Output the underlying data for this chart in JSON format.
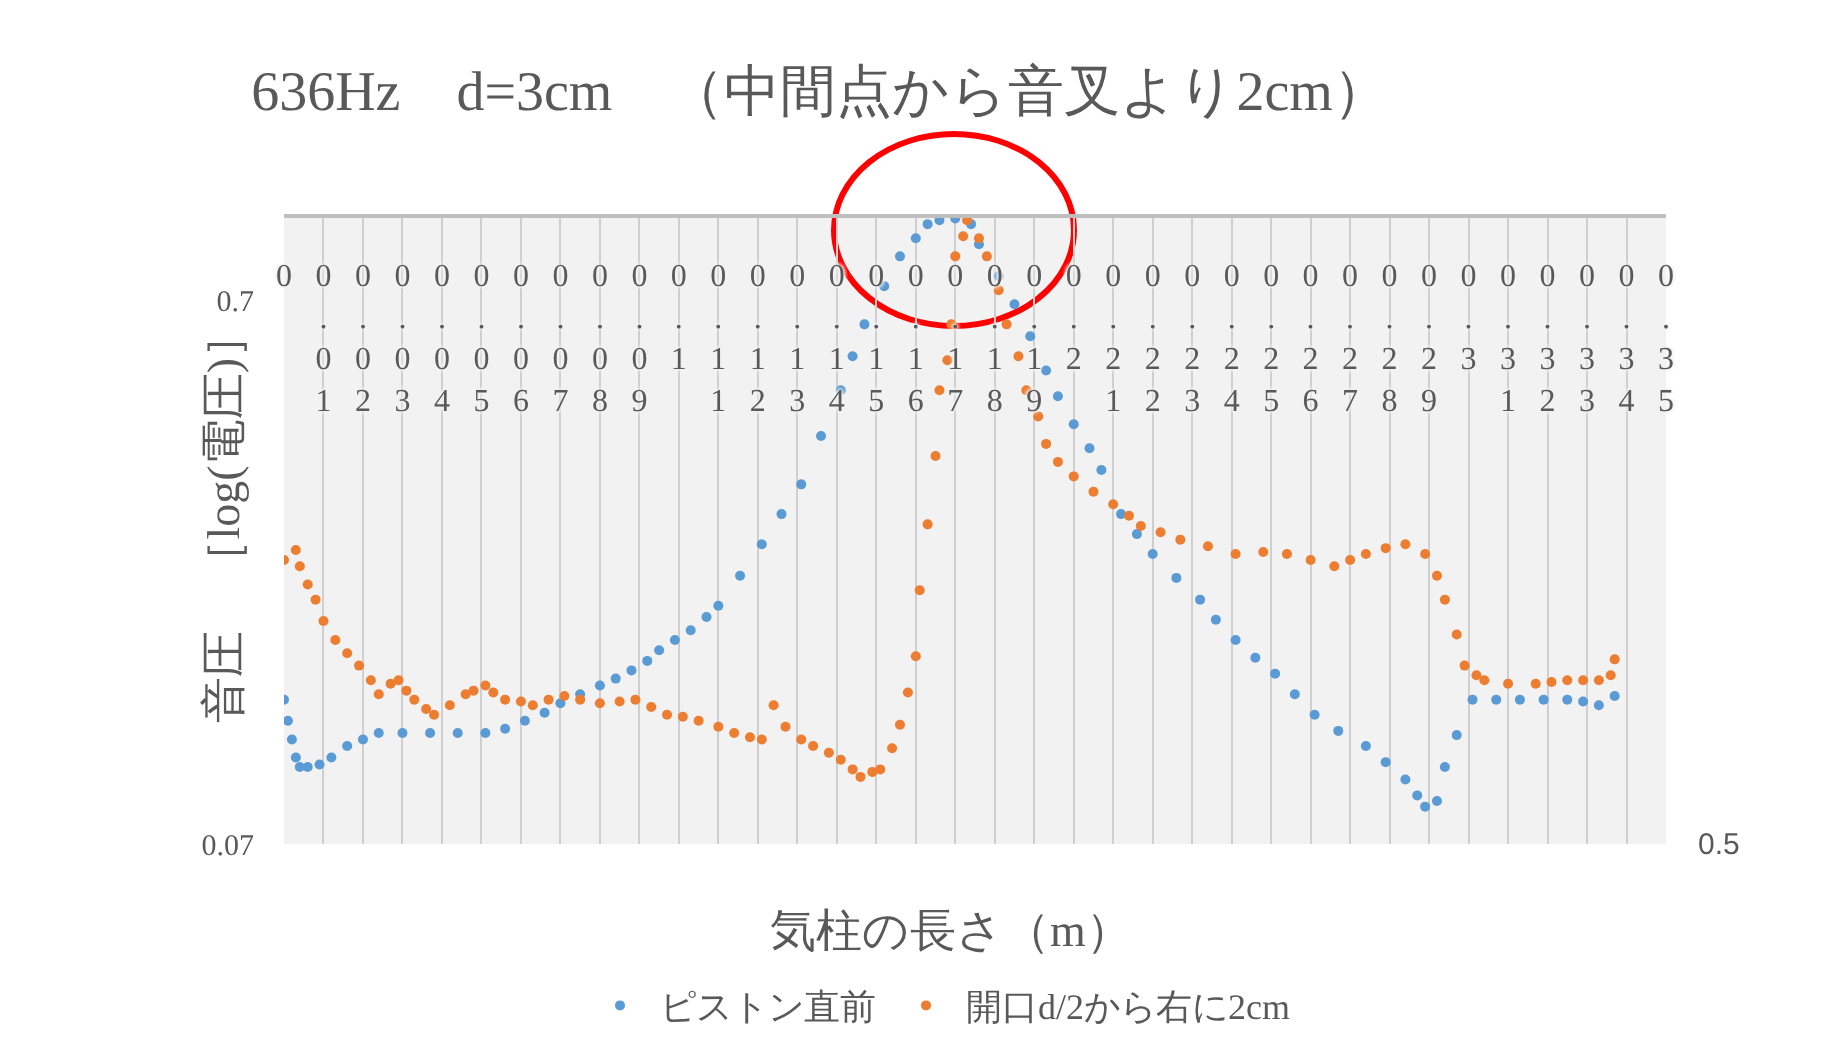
{
  "chart_data": {
    "type": "scatter",
    "title": "636Hz　d=3cm　（中間点から音叉より2cm）",
    "xlabel": "気柱の長さ（m）",
    "ylabel": "音圧　［log(電圧)］",
    "annotations": [
      "0.5"
    ],
    "xlim": [
      0,
      0.35
    ],
    "xticks": [
      0,
      0.01,
      0.02,
      0.03,
      0.04,
      0.05,
      0.06,
      0.07,
      0.08,
      0.09,
      0.1,
      0.11,
      0.12,
      0.13,
      0.14,
      0.15,
      0.16,
      0.17,
      0.18,
      0.19,
      0.2,
      0.21,
      0.22,
      0.23,
      0.24,
      0.25,
      0.26,
      0.27,
      0.28,
      0.29,
      0.3,
      0.31,
      0.32,
      0.33,
      0.34,
      0.35
    ],
    "ylim": [
      0.07,
      1
    ],
    "yticks": [
      0.07,
      0.7
    ],
    "log": "y",
    "grid": "x",
    "legend": "bottom",
    "marker": "circle",
    "series": [
      {
        "name": "ピストン直前",
        "color": "#5b9bd5",
        "x": [
          0,
          0.001,
          0.002,
          0.003,
          0.004,
          0.006,
          0.009,
          0.012,
          0.016,
          0.02,
          0.024,
          0.03,
          0.037,
          0.044,
          0.051,
          0.056,
          0.061,
          0.066,
          0.07,
          0.075,
          0.08,
          0.084,
          0.088,
          0.092,
          0.095,
          0.099,
          0.103,
          0.107,
          0.11,
          0.1155,
          0.121,
          0.126,
          0.131,
          0.136,
          0.141,
          0.144,
          0.147,
          0.152,
          0.156,
          0.16,
          0.163,
          0.166,
          0.17,
          0.174,
          0.176,
          0.181,
          0.185,
          0.189,
          0.193,
          0.196,
          0.2,
          0.204,
          0.207,
          0.212,
          0.216,
          0.22,
          0.226,
          0.232,
          0.236,
          0.241,
          0.246,
          0.251,
          0.256,
          0.261,
          0.267,
          0.274,
          0.279,
          0.284,
          0.287,
          0.289,
          0.292,
          0.294,
          0.297,
          0.301,
          0.307,
          0.313,
          0.319,
          0.325,
          0.329,
          0.333,
          0.337
        ],
        "values": [
          0.129,
          0.118,
          0.109,
          0.101,
          0.097,
          0.097,
          0.098,
          0.101,
          0.106,
          0.109,
          0.112,
          0.112,
          0.112,
          0.112,
          0.112,
          0.114,
          0.118,
          0.122,
          0.127,
          0.132,
          0.137,
          0.141,
          0.146,
          0.152,
          0.159,
          0.166,
          0.173,
          0.183,
          0.192,
          0.218,
          0.249,
          0.283,
          0.321,
          0.394,
          0.478,
          0.552,
          0.632,
          0.743,
          0.843,
          0.91,
          0.966,
          0.982,
          0.99,
          0.966,
          0.887,
          0.775,
          0.688,
          0.601,
          0.52,
          0.466,
          0.414,
          0.374,
          0.341,
          0.283,
          0.26,
          0.239,
          0.216,
          0.197,
          0.181,
          0.166,
          0.154,
          0.144,
          0.132,
          0.121,
          0.113,
          0.106,
          0.099,
          0.092,
          0.086,
          0.082,
          0.084,
          0.097,
          0.111,
          0.129,
          0.129,
          0.129,
          0.129,
          0.129,
          0.128,
          0.126,
          0.131
        ]
      },
      {
        "name": "開口d/2から右に2cm",
        "color": "#ed7d31",
        "x": [
          0,
          0.003,
          0.004,
          0.006,
          0.008,
          0.01,
          0.013,
          0.016,
          0.019,
          0.022,
          0.024,
          0.027,
          0.029,
          0.031,
          0.033,
          0.036,
          0.038,
          0.042,
          0.046,
          0.048,
          0.051,
          0.053,
          0.056,
          0.06,
          0.063,
          0.067,
          0.071,
          0.075,
          0.08,
          0.085,
          0.089,
          0.093,
          0.097,
          0.101,
          0.105,
          0.11,
          0.114,
          0.118,
          0.121,
          0.124,
          0.127,
          0.131,
          0.134,
          0.138,
          0.141,
          0.144,
          0.146,
          0.149,
          0.151,
          0.154,
          0.156,
          0.158,
          0.16,
          0.161,
          0.163,
          0.165,
          0.166,
          0.168,
          0.169,
          0.17,
          0.172,
          0.173,
          0.176,
          0.178,
          0.181,
          0.183,
          0.186,
          0.188,
          0.191,
          0.193,
          0.196,
          0.2,
          0.205,
          0.21,
          0.214,
          0.217,
          0.222,
          0.227,
          0.234,
          0.241,
          0.248,
          0.254,
          0.26,
          0.266,
          0.27,
          0.274,
          0.279,
          0.284,
          0.289,
          0.292,
          0.294,
          0.297,
          0.299,
          0.302,
          0.304,
          0.31,
          0.317,
          0.321,
          0.325,
          0.329,
          0.333,
          0.336,
          0.337
        ],
        "values": [
          0.233,
          0.243,
          0.227,
          0.21,
          0.197,
          0.18,
          0.166,
          0.157,
          0.149,
          0.14,
          0.132,
          0.138,
          0.14,
          0.134,
          0.129,
          0.124,
          0.121,
          0.126,
          0.132,
          0.134,
          0.137,
          0.133,
          0.129,
          0.128,
          0.126,
          0.129,
          0.131,
          0.129,
          0.127,
          0.128,
          0.129,
          0.125,
          0.121,
          0.12,
          0.118,
          0.115,
          0.112,
          0.11,
          0.109,
          0.126,
          0.115,
          0.109,
          0.106,
          0.103,
          0.1,
          0.096,
          0.093,
          0.095,
          0.096,
          0.105,
          0.116,
          0.133,
          0.155,
          0.205,
          0.271,
          0.362,
          0.478,
          0.543,
          0.632,
          0.843,
          0.918,
          0.982,
          0.91,
          0.843,
          0.73,
          0.632,
          0.552,
          0.478,
          0.428,
          0.381,
          0.353,
          0.332,
          0.311,
          0.295,
          0.281,
          0.269,
          0.262,
          0.254,
          0.247,
          0.239,
          0.241,
          0.239,
          0.233,
          0.227,
          0.233,
          0.239,
          0.245,
          0.249,
          0.239,
          0.218,
          0.197,
          0.17,
          0.149,
          0.143,
          0.14,
          0.138,
          0.138,
          0.139,
          0.14,
          0.14,
          0.14,
          0.143,
          0.153
        ]
      }
    ]
  }
}
